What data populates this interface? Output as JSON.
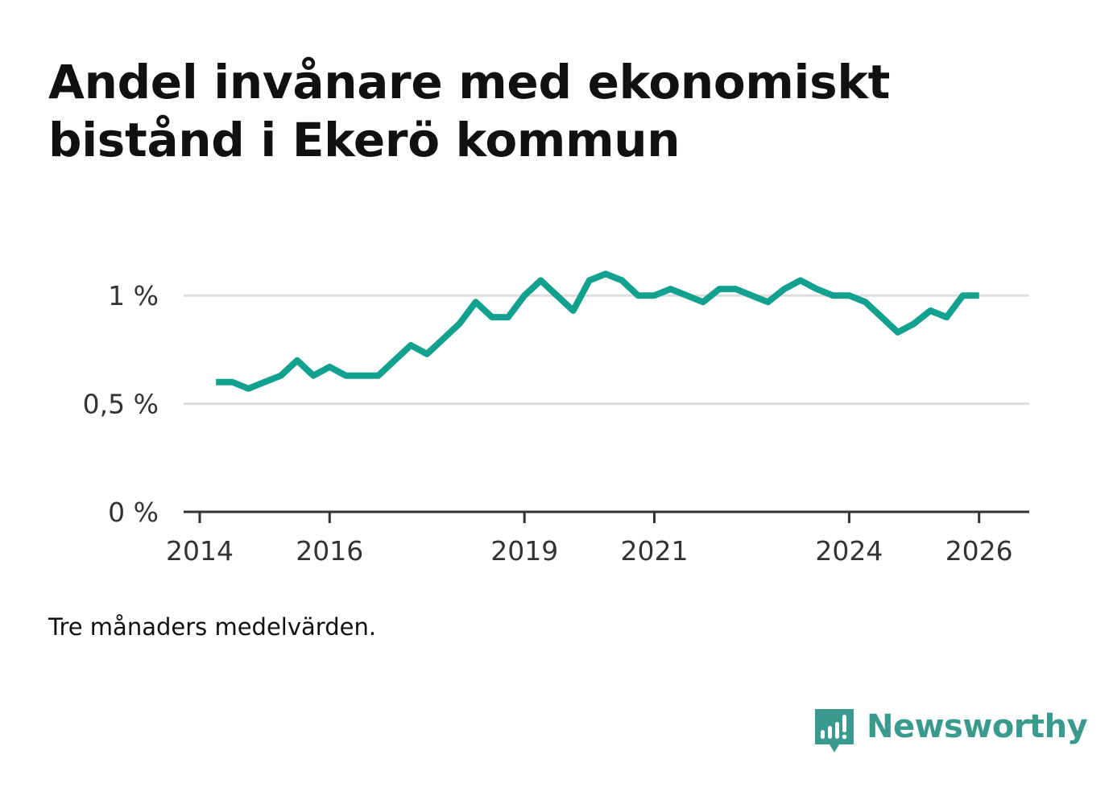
{
  "title": "Andel invånare med ekonomiskt bistånd i Ekerö kommun",
  "note": "Tre månaders medelvärden.",
  "brand": {
    "name": "Newsworthy",
    "icon": "newsworthy-logo-icon"
  },
  "colors": {
    "line": "#12a08f",
    "grid": "#dddddd",
    "axis": "#333333",
    "brand": "#3a9a8e"
  },
  "chart_data": {
    "type": "line",
    "title": "Andel invånare med ekonomiskt bistånd i Ekerö kommun",
    "xlabel": "",
    "ylabel": "",
    "xlim": [
      2014.0,
      2026.5
    ],
    "ylim": [
      0,
      1.25
    ],
    "grid": true,
    "y_ticks": [
      {
        "value": 0,
        "label": "0 %"
      },
      {
        "value": 0.5,
        "label": "0,5 %"
      },
      {
        "value": 1,
        "label": "1 %"
      }
    ],
    "x_ticks": [
      {
        "value": 2014,
        "label": "2014"
      },
      {
        "value": 2016,
        "label": "2016"
      },
      {
        "value": 2019,
        "label": "2019"
      },
      {
        "value": 2021,
        "label": "2021"
      },
      {
        "value": 2024,
        "label": "2024"
      },
      {
        "value": 2026,
        "label": "2026"
      }
    ],
    "series": [
      {
        "name": "Andel invånare med ekonomiskt bistånd",
        "x": [
          2014.25,
          2014.5,
          2014.75,
          2015.0,
          2015.25,
          2015.5,
          2015.75,
          2016.0,
          2016.25,
          2016.5,
          2016.75,
          2017.0,
          2017.25,
          2017.5,
          2017.75,
          2018.0,
          2018.25,
          2018.5,
          2018.75,
          2019.0,
          2019.25,
          2019.5,
          2019.75,
          2020.0,
          2020.25,
          2020.5,
          2020.75,
          2021.0,
          2021.25,
          2021.5,
          2021.75,
          2022.0,
          2022.25,
          2022.5,
          2022.75,
          2023.0,
          2023.25,
          2023.5,
          2023.75,
          2024.0,
          2024.25,
          2024.5,
          2024.75,
          2025.0,
          2025.25,
          2025.5,
          2025.75,
          2026.0
        ],
        "values": [
          0.6,
          0.6,
          0.57,
          0.6,
          0.63,
          0.7,
          0.63,
          0.67,
          0.63,
          0.63,
          0.63,
          0.7,
          0.77,
          0.73,
          0.8,
          0.87,
          0.97,
          0.9,
          0.9,
          1.0,
          1.07,
          1.0,
          0.93,
          1.07,
          1.1,
          1.07,
          1.0,
          1.0,
          1.03,
          1.0,
          0.97,
          1.03,
          1.03,
          1.0,
          0.97,
          1.03,
          1.07,
          1.03,
          1.0,
          1.0,
          0.97,
          0.9,
          0.83,
          0.87,
          0.93,
          0.9,
          1.0,
          1.0
        ]
      }
    ]
  }
}
